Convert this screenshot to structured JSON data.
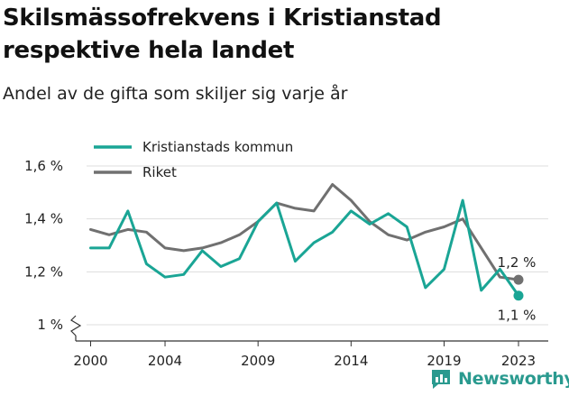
{
  "title": "Skilsmässofrekvens i Kristianstad respektive hela landet",
  "subtitle": "Andel av de gifta som skiljer sig varje år",
  "brand": "Newsworthy",
  "chart_data": {
    "type": "line",
    "x": [
      2000,
      2001,
      2002,
      2003,
      2004,
      2005,
      2006,
      2007,
      2008,
      2009,
      2010,
      2011,
      2012,
      2013,
      2014,
      2015,
      2016,
      2017,
      2018,
      2019,
      2020,
      2021,
      2022,
      2023
    ],
    "x_ticks": [
      2000,
      2004,
      2009,
      2014,
      2019,
      2023
    ],
    "y_ticks": [
      1.0,
      1.2,
      1.4,
      1.6
    ],
    "y_tick_labels": [
      "1 %",
      "1,2 %",
      "1,4 %",
      "1,6 %"
    ],
    "ylim": [
      1.0,
      1.65
    ],
    "axis_break": true,
    "grid": "horizontal",
    "legend_position": "top-left",
    "series": [
      {
        "name": "Kristianstads kommun",
        "color": "#1aa595",
        "values": [
          1.29,
          1.29,
          1.43,
          1.23,
          1.18,
          1.19,
          1.28,
          1.22,
          1.25,
          1.39,
          1.46,
          1.24,
          1.31,
          1.35,
          1.43,
          1.38,
          1.42,
          1.37,
          1.14,
          1.21,
          1.47,
          1.13,
          1.21,
          1.11
        ],
        "end_label": "1,1 %"
      },
      {
        "name": "Riket",
        "color": "#707070",
        "values": [
          1.36,
          1.34,
          1.36,
          1.35,
          1.29,
          1.28,
          1.29,
          1.31,
          1.34,
          1.39,
          1.46,
          1.44,
          1.43,
          1.53,
          1.47,
          1.39,
          1.34,
          1.32,
          1.35,
          1.37,
          1.4,
          1.29,
          1.18,
          1.17
        ],
        "end_label": "1,2 %"
      }
    ]
  }
}
